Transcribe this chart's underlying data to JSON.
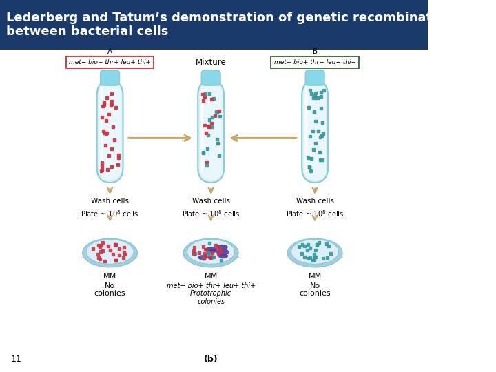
{
  "title": "Lederberg and Tatum’s demonstration of genetic recombination\nbetween bacterial cells",
  "title_bg": "#1a3a6b",
  "title_color": "#ffffff",
  "title_fontsize": 13,
  "strain_A": "met− bio− thr+ leu+ thi+",
  "strain_B": "met+ bio+ thr− leu− thi−",
  "mixture_label": "Mixture",
  "wash_label": "Wash cells",
  "plate_label": "Plate ~ 10$^8$ cells",
  "mm_label": "MM",
  "no_colonies_left": "No\ncolonies",
  "prototrophic_label": "met+ bio+ thr+ leu+ thi+\nPrototrophic\ncolonies",
  "no_colonies_right": "No\ncolonies",
  "b_label": "(b)",
  "page_num": "11",
  "tube_bg": "#d8f0f8",
  "tube_border": "#88ccd8",
  "tube_cap_color": "#88d8e8",
  "tube_liquid": "#eef8fc",
  "plate_outer_color": "#aaccdd",
  "plate_inner_color": "#cce0ee",
  "plate_surface_color": "#ddeef8",
  "dot_red": "#cc3344",
  "dot_teal": "#339999",
  "colony_purple": "#553399",
  "arrow_color": "#c8a86a",
  "box_red_border": "#cc3333",
  "box_green_border": "#336633"
}
